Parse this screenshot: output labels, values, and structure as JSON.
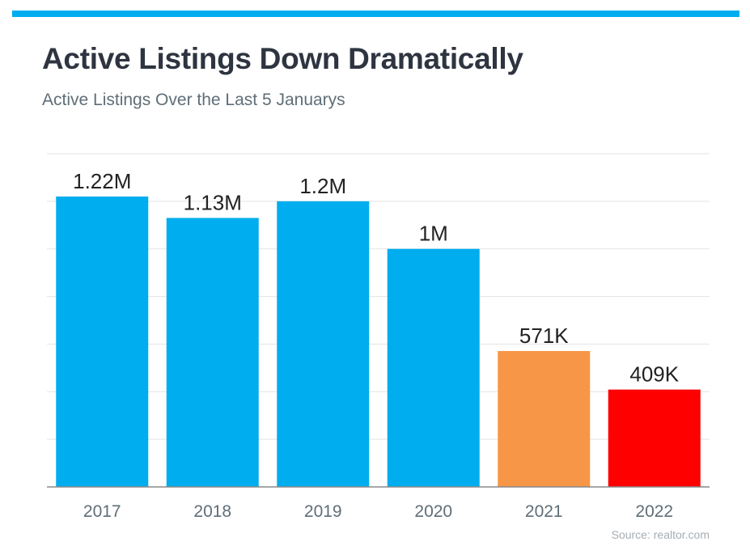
{
  "header": {
    "accent_color": "#00adee",
    "title": "Active Listings Down Dramatically",
    "subtitle": "Active Listings Over the Last 5 Januarys"
  },
  "footer": {
    "source": "Source: realtor.com"
  },
  "chart_data": {
    "type": "bar",
    "categories": [
      "2017",
      "2018",
      "2019",
      "2020",
      "2021",
      "2022"
    ],
    "values": [
      1220000,
      1130000,
      1200000,
      1000000,
      571000,
      409000
    ],
    "data_labels": [
      "1.22M",
      "1.13M",
      "1.2M",
      "1M",
      "571K",
      "409K"
    ],
    "colors": [
      "#00adee",
      "#00adee",
      "#00adee",
      "#00adee",
      "#f79646",
      "#ff0000"
    ],
    "ylim": [
      0,
      1400000
    ],
    "grid": true,
    "legend": "none"
  }
}
